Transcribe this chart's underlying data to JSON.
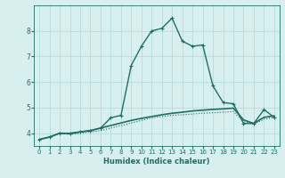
{
  "xlabel": "Humidex (Indice chaleur)",
  "background_color": "#d7efef",
  "grid_color": "#b0d8d8",
  "line_color": "#1e6e65",
  "xlim": [
    -0.5,
    23.5
  ],
  "ylim": [
    3.5,
    9.0
  ],
  "yticks": [
    4,
    5,
    6,
    7,
    8
  ],
  "xticks": [
    0,
    1,
    2,
    3,
    4,
    5,
    6,
    7,
    8,
    9,
    10,
    11,
    12,
    13,
    14,
    15,
    16,
    17,
    18,
    19,
    20,
    21,
    22,
    23
  ],
  "series": [
    {
      "x": [
        0,
        1,
        2,
        3,
        4,
        5,
        6,
        7,
        8,
        9,
        10,
        11,
        12,
        13,
        14,
        15,
        16,
        17,
        18,
        19,
        20,
        21,
        22,
        23
      ],
      "y": [
        3.75,
        3.85,
        4.0,
        3.95,
        4.0,
        4.05,
        4.1,
        4.2,
        4.3,
        4.4,
        4.5,
        4.6,
        4.65,
        4.7,
        4.72,
        4.75,
        4.78,
        4.8,
        4.82,
        4.85,
        4.45,
        4.35,
        4.55,
        4.62
      ],
      "style": "dotted",
      "marker": null,
      "linewidth": 0.8
    },
    {
      "x": [
        0,
        1,
        2,
        3,
        4,
        5,
        6,
        7,
        8,
        9,
        10,
        11,
        12,
        13,
        14,
        15,
        16,
        17,
        18,
        19,
        20,
        21,
        22,
        23
      ],
      "y": [
        3.75,
        3.85,
        4.0,
        3.98,
        4.05,
        4.1,
        4.2,
        4.3,
        4.4,
        4.5,
        4.58,
        4.65,
        4.72,
        4.78,
        4.82,
        4.87,
        4.9,
        4.93,
        4.95,
        4.98,
        4.52,
        4.38,
        4.62,
        4.68
      ],
      "style": "solid",
      "marker": null,
      "linewidth": 1.2
    },
    {
      "x": [
        0,
        1,
        2,
        3,
        4,
        5,
        6,
        7,
        8,
        9,
        10,
        11,
        12,
        13,
        14,
        15,
        16,
        17,
        18,
        19,
        20,
        21,
        22,
        23
      ],
      "y": [
        3.75,
        3.85,
        4.0,
        4.0,
        4.05,
        4.1,
        4.2,
        4.6,
        4.7,
        6.65,
        7.4,
        8.0,
        8.1,
        8.5,
        7.6,
        7.4,
        7.45,
        5.85,
        5.2,
        5.15,
        4.38,
        4.38,
        4.92,
        4.62
      ],
      "style": "solid",
      "marker": "+",
      "linewidth": 1.0
    }
  ]
}
